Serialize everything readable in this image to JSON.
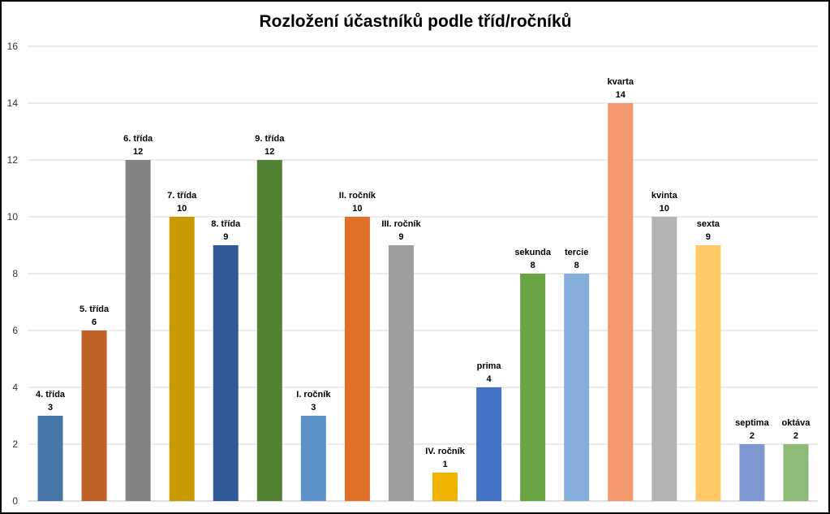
{
  "chart_data": {
    "type": "bar",
    "title": "Rozložení účastníků podle tříd/ročníků",
    "xlabel": "",
    "ylabel": "",
    "ylim": [
      0,
      16
    ],
    "yticks": [
      0,
      2,
      4,
      6,
      8,
      10,
      12,
      14,
      16
    ],
    "grid": true,
    "legend": "none",
    "categories": [
      "4. třída",
      "5. třída",
      "6. třída",
      "7. třída",
      "8. třída",
      "9. třída",
      "I. ročník",
      "II. ročník",
      "III. ročník",
      "IV. ročník",
      "prima",
      "sekunda",
      "tercie",
      "kvarta",
      "kvinta",
      "sexta",
      "septima",
      "oktáva"
    ],
    "values": [
      3,
      6,
      12,
      10,
      9,
      12,
      3,
      10,
      9,
      1,
      4,
      8,
      8,
      14,
      10,
      9,
      2,
      2
    ],
    "colors": [
      "#4677A8",
      "#C0612A",
      "#828282",
      "#C99A00",
      "#2F5A97",
      "#548235",
      "#5B92C9",
      "#E07028",
      "#9E9E9E",
      "#F0B400",
      "#4472C4",
      "#6AA442",
      "#86AEDD",
      "#F29A6E",
      "#B3B3B3",
      "#FFC966",
      "#7F98D1",
      "#8DBB77"
    ]
  }
}
